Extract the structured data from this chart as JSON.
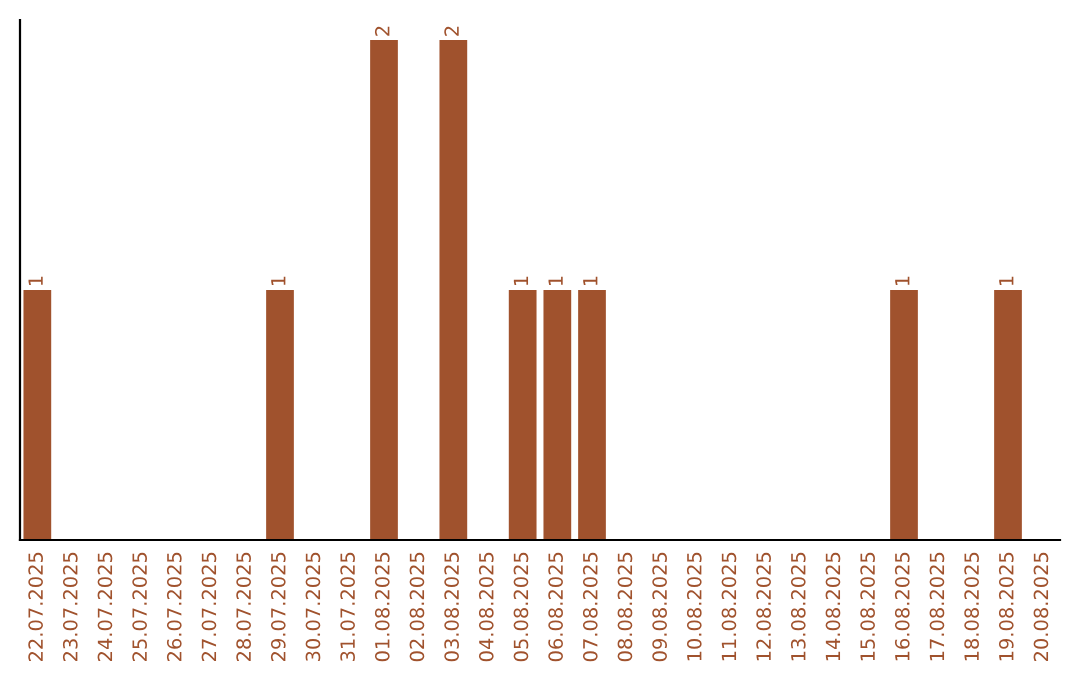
{
  "chart_data": {
    "type": "bar",
    "categories": [
      "22.07.2025",
      "23.07.2025",
      "24.07.2025",
      "25.07.2025",
      "26.07.2025",
      "27.07.2025",
      "28.07.2025",
      "29.07.2025",
      "30.07.2025",
      "31.07.2025",
      "01.08.2025",
      "02.08.2025",
      "03.08.2025",
      "04.08.2025",
      "05.08.2025",
      "06.08.2025",
      "07.08.2025",
      "08.08.2025",
      "09.08.2025",
      "10.08.2025",
      "11.08.2025",
      "12.08.2025",
      "13.08.2025",
      "14.08.2025",
      "15.08.2025",
      "16.08.2025",
      "17.08.2025",
      "18.08.2025",
      "19.08.2025",
      "20.08.2025"
    ],
    "values": [
      1,
      0,
      0,
      0,
      0,
      0,
      0,
      1,
      0,
      0,
      2,
      0,
      2,
      0,
      1,
      1,
      1,
      0,
      0,
      0,
      0,
      0,
      0,
      0,
      0,
      1,
      0,
      0,
      1,
      0
    ],
    "value_labels": [
      "1",
      null,
      null,
      null,
      null,
      null,
      null,
      "1",
      null,
      null,
      "2",
      null,
      "2",
      null,
      "1",
      "1",
      "1",
      null,
      null,
      null,
      null,
      null,
      null,
      null,
      null,
      "1",
      null,
      null,
      "1",
      null
    ],
    "color": "#a0522d",
    "ylim": [
      0,
      2.08
    ],
    "grid": false,
    "legend": false
  }
}
